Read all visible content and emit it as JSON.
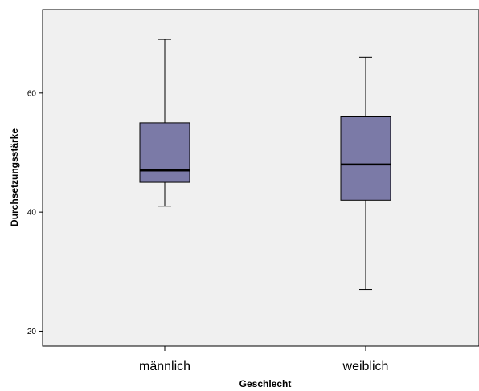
{
  "chart_data": {
    "type": "boxplot",
    "xlabel": "Geschlecht",
    "ylabel": "Durchsetzungsstärke",
    "categories": [
      "männlich",
      "weiblich"
    ],
    "boxes": [
      {
        "category": "männlich",
        "min": 41,
        "q1": 45,
        "median": 47,
        "q3": 55,
        "max": 69
      },
      {
        "category": "weiblich",
        "min": 27,
        "q1": 42,
        "median": 48,
        "q3": 56,
        "max": 66
      }
    ],
    "yticks": [
      20,
      40,
      60
    ],
    "ylim": [
      17.5,
      74
    ],
    "grid": false,
    "colors": {
      "plot_background": "#f0f0f0",
      "box_fill": "#7b7aa7",
      "line": "#000000"
    }
  }
}
